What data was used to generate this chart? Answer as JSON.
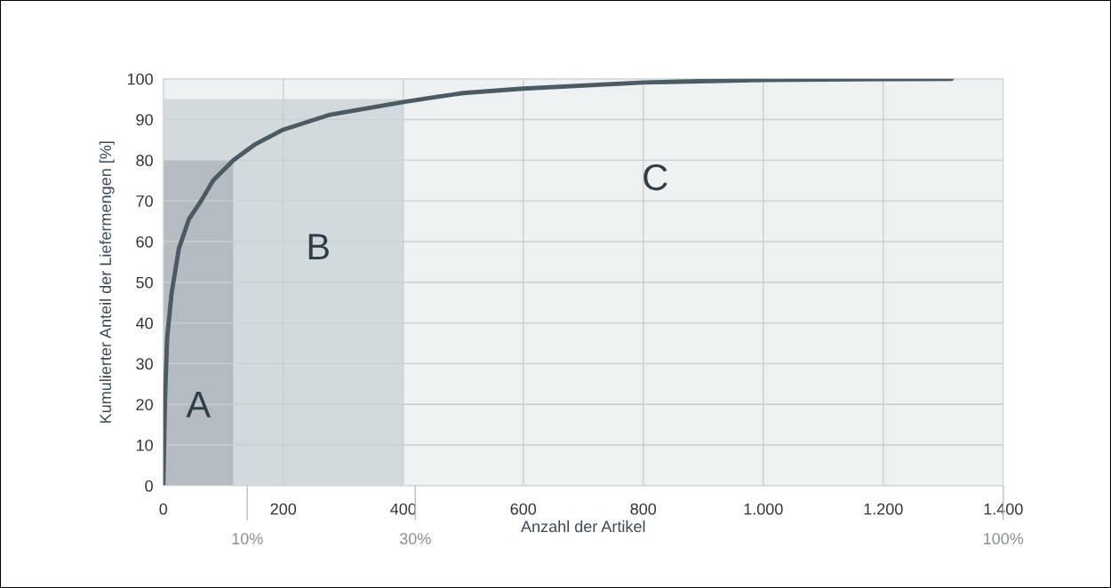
{
  "chart_data": {
    "type": "line",
    "xlabel": "Anzahl der Artikel",
    "ylabel": "Kumulierter Anteil der Liefermengen [%]",
    "xlim": [
      0,
      1400
    ],
    "xticks": [
      0,
      200,
      400,
      600,
      800,
      {
        "value": 1000,
        "label": "1.000"
      },
      {
        "value": 1200,
        "label": "1.200"
      },
      {
        "value": 1400,
        "label": "1.400"
      }
    ],
    "x2lim": [
      0,
      100
    ],
    "x2ticks": [
      {
        "value": 10,
        "label": "10%"
      },
      {
        "value": 30,
        "label": "30%"
      },
      {
        "value": 100,
        "label": "100%"
      }
    ],
    "ylim": [
      0,
      100
    ],
    "yticks": [
      0,
      10,
      20,
      30,
      40,
      50,
      60,
      70,
      80,
      90,
      100
    ],
    "grid": true,
    "legend": false,
    "stacked": true,
    "series": [
      {
        "type": "area",
        "color": "#b4bcc2",
        "x": [
          0,
          117,
          117,
          400
        ],
        "values": [
          80,
          80,
          0,
          0
        ]
      },
      {
        "type": "area",
        "color": "#d3dadd",
        "x": [
          0,
          117,
          117,
          400
        ],
        "values": [
          15,
          15,
          95,
          95
        ]
      },
      {
        "color": "#4b5a63",
        "x": [
          0,
          3,
          6.4,
          13.8,
          26,
          43,
          63,
          83,
          117,
          152,
          200,
          276,
          400,
          453,
          500,
          600,
          800,
          1000,
          1200,
          1314
        ],
        "values": [
          0,
          21.9,
          36.3,
          47.3,
          58.3,
          65.6,
          70,
          75,
          80,
          83.8,
          87.5,
          91.1,
          94.3,
          95.5,
          96.5,
          97.6,
          99.1,
          99.7,
          99.9,
          100
        ]
      }
    ],
    "annotations": [
      "A",
      "B",
      "C"
    ]
  }
}
